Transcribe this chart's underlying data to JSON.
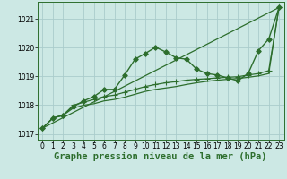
{
  "title": "Graphe pression niveau de la mer (hPa)",
  "background_color": "#cce8e4",
  "grid_color": "#aacccc",
  "line_color": "#2d6e2d",
  "xlim": [
    -0.5,
    23.5
  ],
  "ylim": [
    1016.8,
    1021.6
  ],
  "yticks": [
    1017,
    1018,
    1019,
    1020,
    1021
  ],
  "xticks": [
    0,
    1,
    2,
    3,
    4,
    5,
    6,
    7,
    8,
    9,
    10,
    11,
    12,
    13,
    14,
    15,
    16,
    17,
    18,
    19,
    20,
    21,
    22,
    23
  ],
  "series": [
    {
      "x": [
        0,
        23
      ],
      "y": [
        1017.2,
        1021.4
      ],
      "marker": null,
      "linewidth": 0.9,
      "linestyle": "-"
    },
    {
      "x": [
        0,
        1,
        2,
        3,
        4,
        5,
        6,
        7,
        8,
        9,
        10,
        11,
        12,
        13,
        14,
        15,
        16,
        17,
        18,
        19,
        20,
        21,
        22,
        23
      ],
      "y": [
        1017.2,
        1017.55,
        1017.65,
        1017.9,
        1018.0,
        1018.05,
        1018.15,
        1018.2,
        1018.28,
        1018.38,
        1018.48,
        1018.55,
        1018.6,
        1018.65,
        1018.72,
        1018.78,
        1018.83,
        1018.87,
        1018.9,
        1018.93,
        1018.97,
        1019.02,
        1019.1,
        1021.4
      ],
      "marker": null,
      "linewidth": 0.9,
      "linestyle": "-"
    },
    {
      "x": [
        0,
        1,
        2,
        3,
        4,
        5,
        6,
        7,
        8,
        9,
        10,
        11,
        12,
        13,
        14,
        15,
        16,
        17,
        18,
        19,
        20,
        21,
        22,
        23
      ],
      "y": [
        1017.2,
        1017.55,
        1017.65,
        1018.0,
        1018.1,
        1018.2,
        1018.3,
        1018.35,
        1018.45,
        1018.55,
        1018.65,
        1018.72,
        1018.78,
        1018.82,
        1018.87,
        1018.9,
        1018.92,
        1018.95,
        1018.97,
        1018.99,
        1019.05,
        1019.1,
        1019.2,
        1021.4
      ],
      "marker": "+",
      "markersize": 4,
      "linewidth": 0.9,
      "linestyle": "-"
    },
    {
      "x": [
        0,
        1,
        2,
        3,
        4,
        5,
        6,
        7,
        8,
        9,
        10,
        11,
        12,
        13,
        14,
        15,
        16,
        17,
        18,
        19,
        20,
        21,
        22,
        23
      ],
      "y": [
        1017.2,
        1017.55,
        1017.65,
        1017.95,
        1018.15,
        1018.3,
        1018.55,
        1018.55,
        1019.05,
        1019.6,
        1019.8,
        1020.02,
        1019.85,
        1019.65,
        1019.6,
        1019.25,
        1019.1,
        1019.05,
        1018.95,
        1018.85,
        1019.1,
        1019.9,
        1020.3,
        1021.4
      ],
      "marker": "D",
      "markersize": 2.8,
      "linewidth": 1.0,
      "linestyle": "-"
    }
  ],
  "tick_fontsize": 5.5,
  "xlabel_fontsize": 7.5
}
